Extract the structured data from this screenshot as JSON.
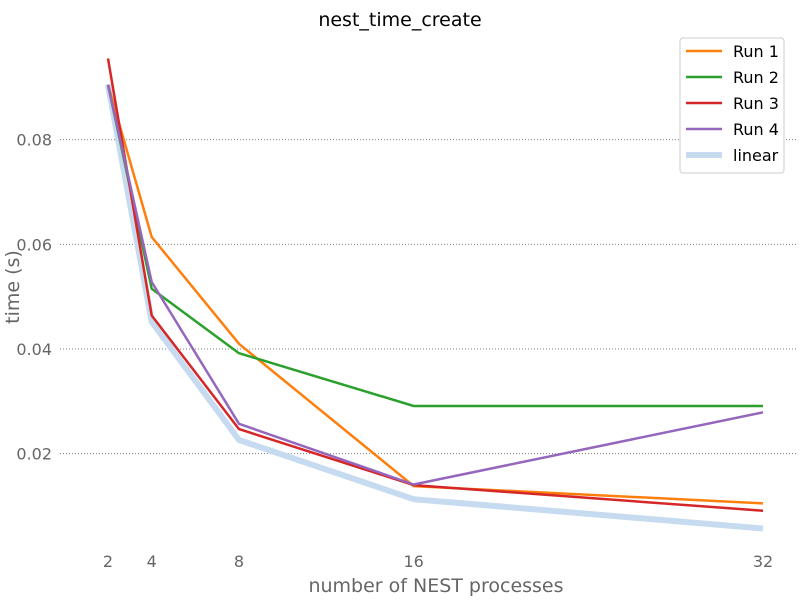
{
  "chart_data": {
    "type": "line",
    "title": "nest_time_create",
    "xlabel": "number of NEST processes",
    "ylabel": "time (s)",
    "x": [
      2,
      4,
      8,
      16,
      32
    ],
    "xticks": [
      "2",
      "4",
      "8",
      "16",
      "32"
    ],
    "yticks": [
      "0.02",
      "0.04",
      "0.06",
      "0.08"
    ],
    "ytick_values": [
      0.02,
      0.04,
      0.06,
      0.08
    ],
    "xlim": [
      2,
      32
    ],
    "ylim": [
      0.0035,
      0.1
    ],
    "grid": "horizontal dotted",
    "legend_position": "top-right",
    "series": [
      {
        "name": "Run 1",
        "color": "#ff7f0e",
        "values": [
          0.0905,
          0.0614,
          0.041,
          0.0138,
          0.0105
        ]
      },
      {
        "name": "Run 2",
        "color": "#2ca02c",
        "values": [
          0.0905,
          0.0515,
          0.0392,
          0.0291,
          0.0291
        ]
      },
      {
        "name": "Run 3",
        "color": "#d62728",
        "values": [
          0.0955,
          0.0464,
          0.0247,
          0.014,
          0.0091
        ]
      },
      {
        "name": "Run 4",
        "color": "#9467bd",
        "values": [
          0.0905,
          0.0528,
          0.0257,
          0.0141,
          0.0279
        ]
      },
      {
        "name": "linear",
        "color": "#c6dbef",
        "values": [
          0.0905,
          0.0452,
          0.0226,
          0.0113,
          0.0057
        ]
      }
    ]
  }
}
